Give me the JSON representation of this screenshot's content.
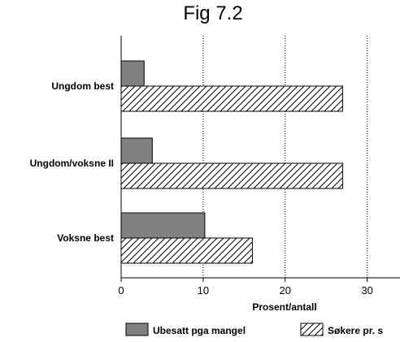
{
  "chart_data": {
    "type": "bar",
    "orientation": "horizontal",
    "title": "Fig 7.2",
    "xlabel": "Prosent/antall",
    "ylabel": "",
    "categories": [
      "Ungdom best",
      "Ungdom/voksne II",
      "Voksne best"
    ],
    "series": [
      {
        "name": "Ubesatt pga mangel",
        "values": [
          2.8,
          3.8,
          10.2
        ],
        "fill": "solid",
        "color": "#808080"
      },
      {
        "name": "Søkere pr. s",
        "values": [
          27,
          27,
          16
        ],
        "fill": "hatched",
        "color": "#ffffff"
      }
    ],
    "xlim": [
      0,
      34
    ],
    "xticks": [
      0,
      10,
      20,
      30
    ],
    "xtick_labels": [
      "0",
      "10",
      "20",
      "30"
    ],
    "grid": "vertical-dotted",
    "legend": "bottom"
  }
}
